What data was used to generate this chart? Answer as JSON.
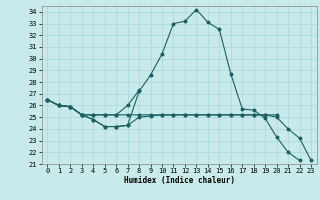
{
  "xlabel": "Humidex (Indice chaleur)",
  "ylabel": "",
  "bg_color": "#c8eaea",
  "grid_color": "#a8d8d8",
  "line_color": "#1a6060",
  "xlim": [
    -0.5,
    23.5
  ],
  "ylim": [
    21,
    34.5
  ],
  "yticks": [
    21,
    22,
    23,
    24,
    25,
    26,
    27,
    28,
    29,
    30,
    31,
    32,
    33,
    34
  ],
  "xticks": [
    0,
    1,
    2,
    3,
    4,
    5,
    6,
    7,
    8,
    9,
    10,
    11,
    12,
    13,
    14,
    15,
    16,
    17,
    18,
    19,
    20,
    21,
    22,
    23
  ],
  "series": [
    [
      26.5,
      26.0,
      25.9,
      25.2,
      24.8,
      24.2,
      24.2,
      24.3,
      27.2,
      28.6,
      30.4,
      33.0,
      33.2,
      34.2,
      33.1,
      32.5,
      28.7,
      25.7,
      25.6,
      24.9,
      23.3,
      22.0,
      21.3,
      null
    ],
    [
      26.5,
      26.0,
      25.9,
      25.2,
      25.2,
      25.2,
      25.2,
      26.0,
      27.3,
      null,
      null,
      null,
      null,
      null,
      null,
      null,
      null,
      null,
      null,
      null,
      null,
      null,
      null,
      null
    ],
    [
      26.5,
      26.0,
      25.9,
      25.2,
      25.2,
      25.2,
      25.2,
      25.2,
      25.2,
      25.2,
      25.2,
      25.2,
      25.2,
      25.2,
      25.2,
      25.2,
      25.2,
      25.2,
      25.2,
      25.2,
      25.2,
      null,
      null,
      null
    ],
    [
      26.5,
      26.0,
      25.9,
      25.2,
      24.8,
      24.2,
      24.2,
      24.3,
      25.0,
      25.1,
      25.2,
      25.2,
      25.2,
      25.2,
      25.2,
      25.2,
      25.2,
      25.2,
      25.2,
      25.2,
      25.0,
      24.0,
      23.2,
      21.3
    ]
  ]
}
